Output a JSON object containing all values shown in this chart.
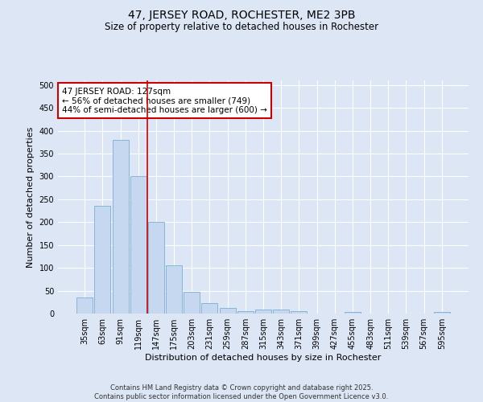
{
  "title": "47, JERSEY ROAD, ROCHESTER, ME2 3PB",
  "subtitle": "Size of property relative to detached houses in Rochester",
  "xlabel": "Distribution of detached houses by size in Rochester",
  "ylabel": "Number of detached properties",
  "categories": [
    "35sqm",
    "63sqm",
    "91sqm",
    "119sqm",
    "147sqm",
    "175sqm",
    "203sqm",
    "231sqm",
    "259sqm",
    "287sqm",
    "315sqm",
    "343sqm",
    "371sqm",
    "399sqm",
    "427sqm",
    "455sqm",
    "483sqm",
    "511sqm",
    "539sqm",
    "567sqm",
    "595sqm"
  ],
  "values": [
    35,
    235,
    380,
    300,
    200,
    105,
    48,
    22,
    13,
    5,
    9,
    9,
    5,
    0,
    0,
    3,
    0,
    0,
    0,
    0,
    4
  ],
  "bar_color": "#c5d8f0",
  "bar_edge_color": "#7bafd4",
  "background_color": "#dce6f5",
  "grid_color": "#ffffff",
  "vline_x": 3.5,
  "vline_color": "#cc0000",
  "annotation_text": "47 JERSEY ROAD: 127sqm\n← 56% of detached houses are smaller (749)\n44% of semi-detached houses are larger (600) →",
  "annotation_box_edgecolor": "#cc0000",
  "footnote": "Contains HM Land Registry data © Crown copyright and database right 2025.\nContains public sector information licensed under the Open Government Licence v3.0.",
  "ylim": [
    0,
    510
  ],
  "yticks": [
    0,
    50,
    100,
    150,
    200,
    250,
    300,
    350,
    400,
    450,
    500
  ],
  "title_fontsize": 10,
  "subtitle_fontsize": 8.5,
  "xlabel_fontsize": 8,
  "ylabel_fontsize": 8,
  "tick_fontsize": 7,
  "annotation_fontsize": 7.5,
  "footnote_fontsize": 6
}
